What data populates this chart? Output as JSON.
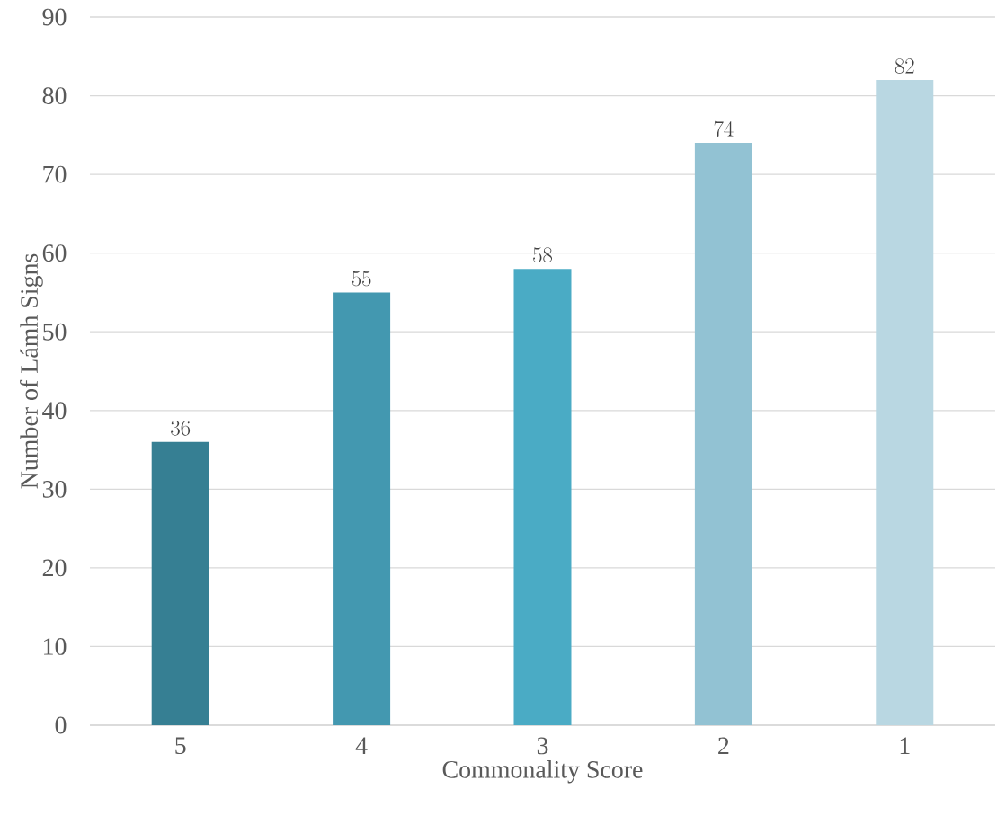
{
  "chart_data": {
    "type": "bar",
    "xlabel": "Commonality Score",
    "ylabel": "Number of Lámh Signs",
    "categories": [
      "5",
      "4",
      "3",
      "2",
      "1"
    ],
    "values": [
      36,
      55,
      58,
      74,
      82
    ],
    "colors": [
      "#367f93",
      "#4398b0",
      "#4aabc5",
      "#92c2d3",
      "#b9d7e2"
    ],
    "ylim": [
      0,
      90
    ],
    "yticks": [
      0,
      10,
      20,
      30,
      40,
      50,
      60,
      70,
      80,
      90
    ],
    "grid": "y",
    "data_labels": true
  }
}
